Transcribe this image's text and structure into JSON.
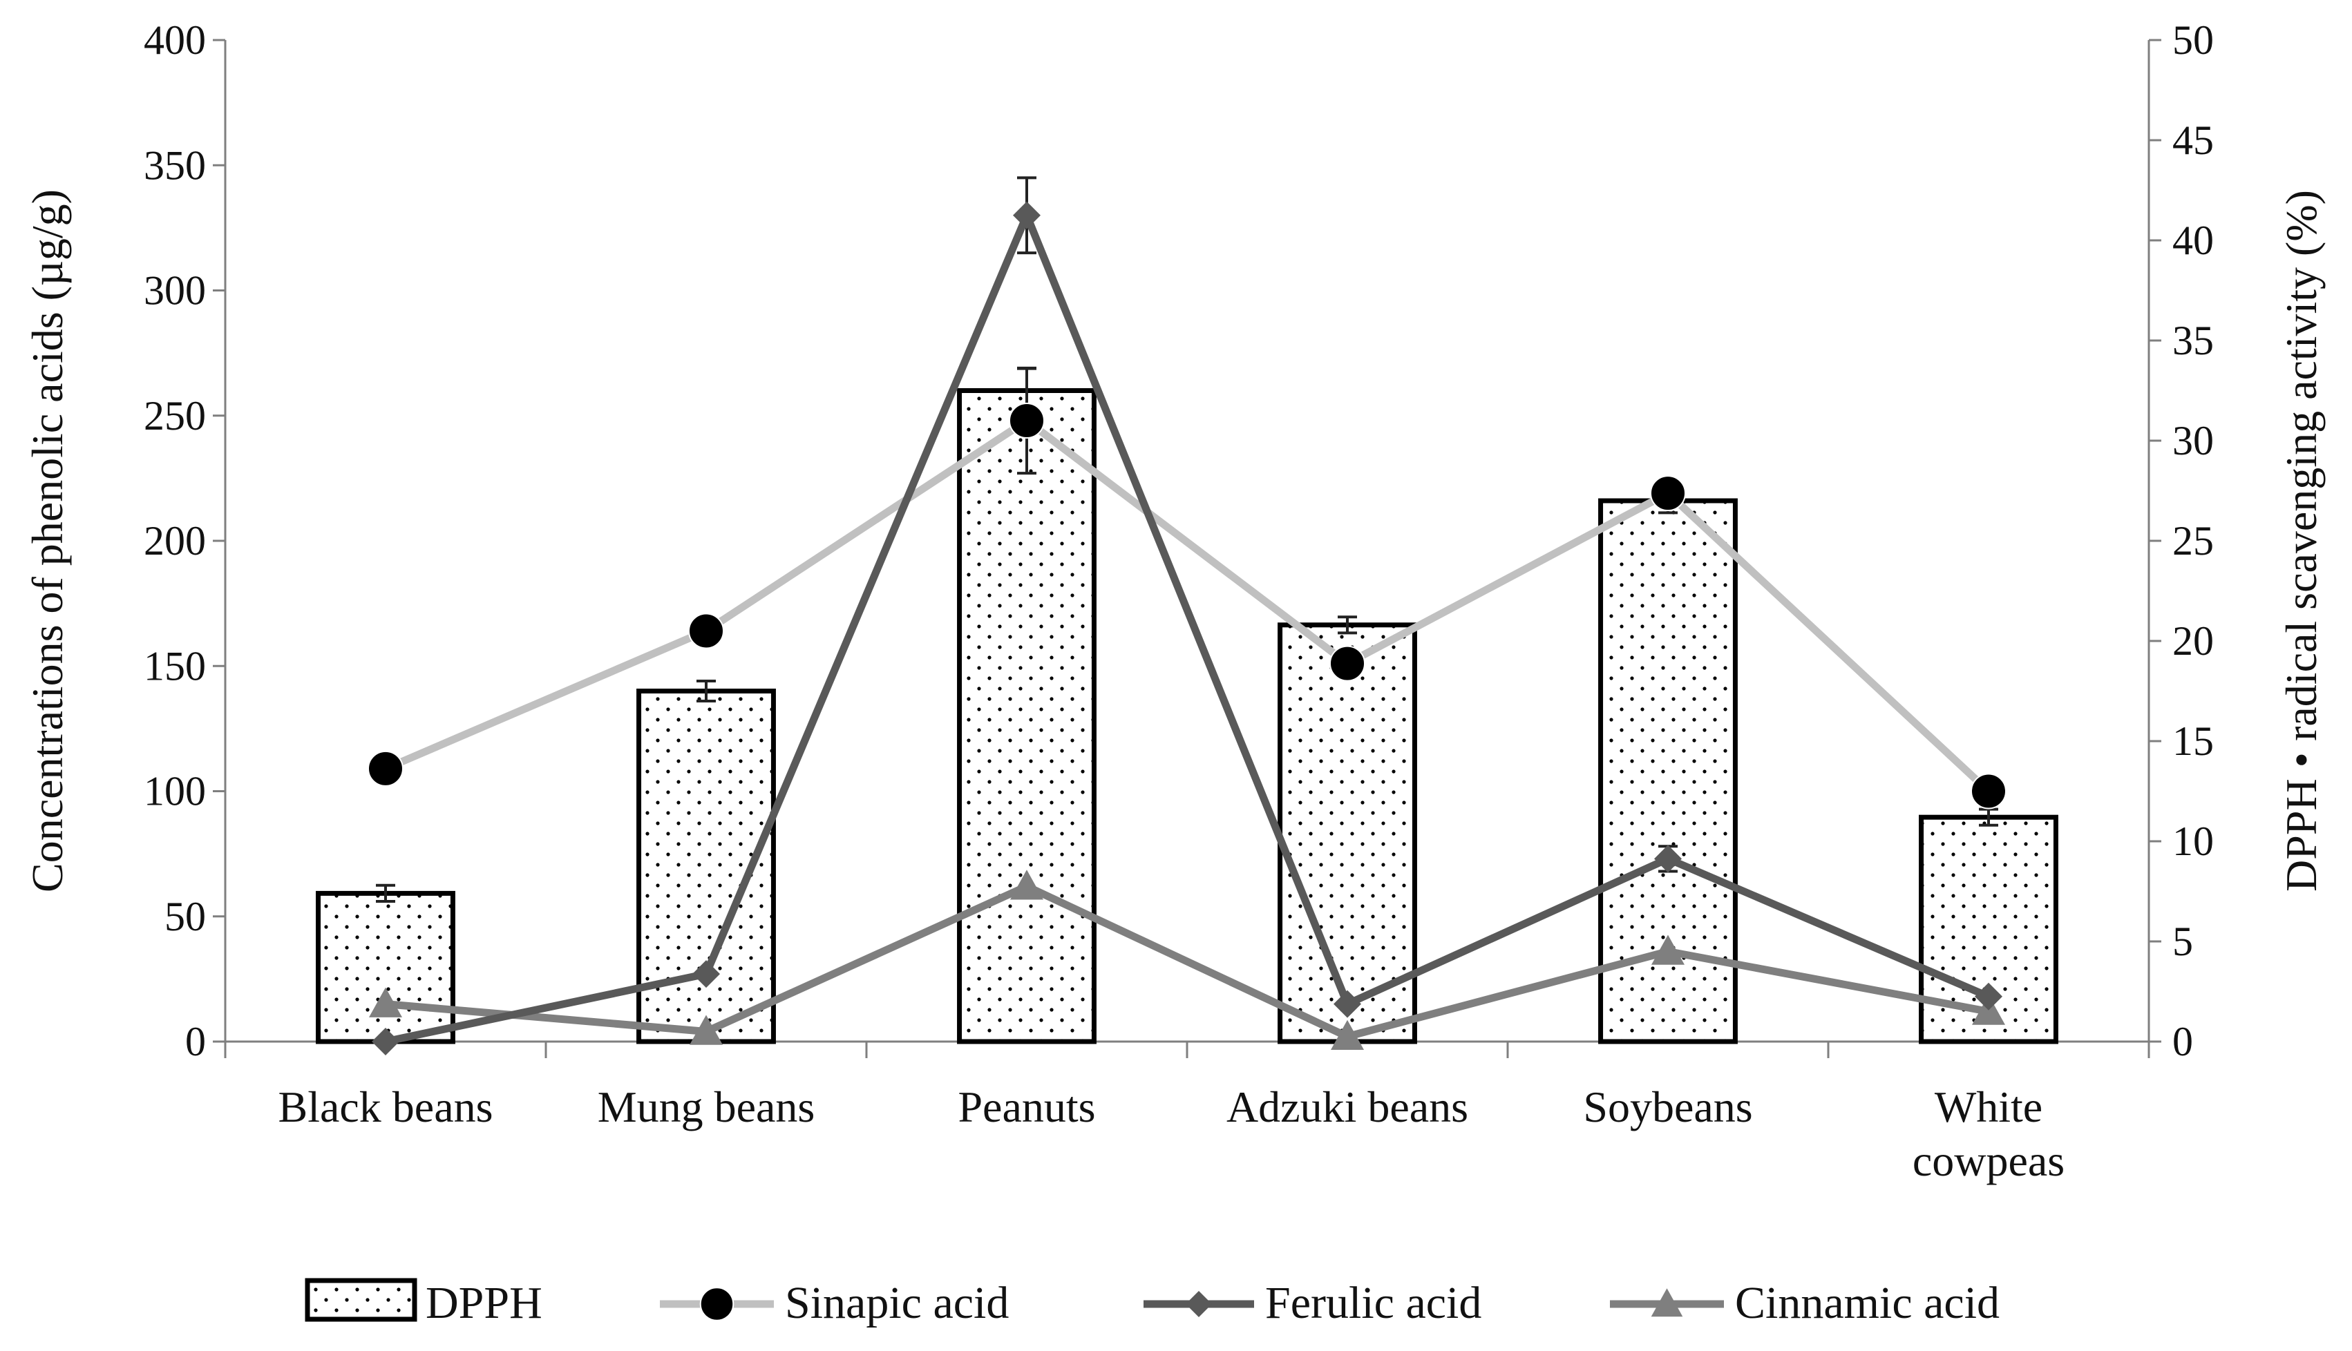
{
  "chart_data": {
    "type": "bar",
    "categories": [
      [
        "Black beans"
      ],
      [
        "Mung beans"
      ],
      [
        "Peanuts"
      ],
      [
        "Adzuki beans"
      ],
      [
        "Soybeans"
      ],
      [
        "White",
        "cowpeas"
      ]
    ],
    "ylabel": "Concentrations of phenolic acids (µg/g)",
    "y2label": "DPPH • radical scavenging activity (%)",
    "ylim": [
      0,
      400
    ],
    "y2lim": [
      0,
      50
    ],
    "yticks": [
      "0",
      "50",
      "100",
      "150",
      "200",
      "250",
      "300",
      "350",
      "400"
    ],
    "y2ticks": [
      "0",
      "5",
      "10",
      "15",
      "20",
      "25",
      "30",
      "35",
      "40",
      "45",
      "50"
    ],
    "legend_position": "bottom",
    "grid": false,
    "series": [
      {
        "name": "DPPH",
        "type": "bar",
        "axis": "right",
        "values": [
          7.4,
          17.5,
          32.5,
          20.8,
          27.0,
          11.2
        ],
        "errors": [
          0.4,
          0.5,
          1.1,
          0.4,
          0.6,
          0.4
        ],
        "color": "#000000",
        "pattern": "dots"
      },
      {
        "name": "Sinapic acid",
        "type": "line",
        "axis": "left",
        "values": [
          109,
          164,
          248,
          151,
          219,
          100
        ],
        "errors": [
          0,
          0,
          21,
          0,
          5,
          0
        ],
        "line_color": "#c0c0c0",
        "marker": "circle",
        "marker_color": "#000000"
      },
      {
        "name": "Ferulic acid",
        "type": "line",
        "axis": "left",
        "values": [
          0,
          27,
          330,
          15,
          73,
          18
        ],
        "errors": [
          0,
          0,
          15,
          0,
          5,
          0
        ],
        "line_color": "#595959",
        "marker": "diamond",
        "marker_color": "#595959"
      },
      {
        "name": "Cinnamic acid",
        "type": "line",
        "axis": "left",
        "values": [
          15,
          4,
          62,
          2,
          36,
          12
        ],
        "errors": [
          0,
          0,
          0,
          0,
          0,
          0
        ],
        "line_color": "#7f7f7f",
        "marker": "triangle",
        "marker_color": "#7f7f7f"
      }
    ]
  }
}
